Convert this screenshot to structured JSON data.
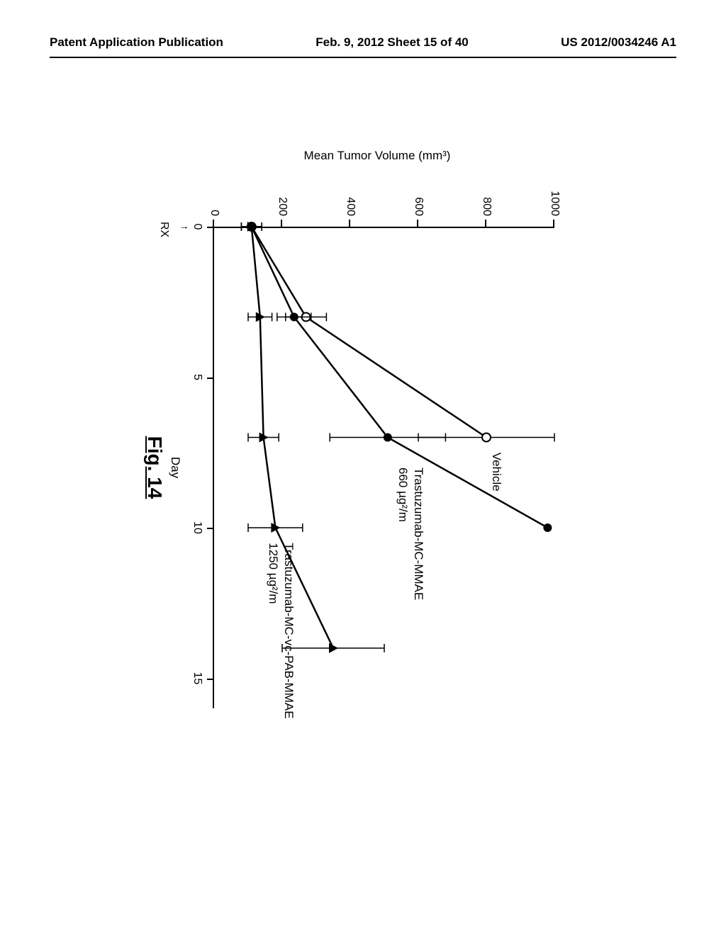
{
  "header": {
    "left": "Patent Application Publication",
    "center": "Feb. 9, 2012  Sheet 15 of 40",
    "right": "US 2012/0034246 A1"
  },
  "chart": {
    "type": "line",
    "title": "",
    "x_label": "Day",
    "y_label": "Mean Tumor Volume (mm³)",
    "xlim": [
      0,
      16
    ],
    "ylim": [
      0,
      1000
    ],
    "y_ticks": [
      0,
      200,
      400,
      600,
      800,
      1000
    ],
    "x_ticks": [
      0,
      5,
      10,
      15
    ],
    "axis_color": "#000000",
    "background_color": "#ffffff",
    "line_width": 2.5,
    "label_fontsize": 17,
    "tick_fontsize": 16,
    "rx_marker": {
      "x": 0,
      "label": "RX",
      "arrow": "↑"
    },
    "series": [
      {
        "name": "Vehicle",
        "label": "Vehicle",
        "marker": "open-circle",
        "color": "#000000",
        "points": [
          {
            "x": 0,
            "y": 110,
            "err": 30
          },
          {
            "x": 3,
            "y": 270,
            "err": 60
          },
          {
            "x": 7,
            "y": 800,
            "err": 200
          }
        ],
        "label_pos": {
          "x": 7.5,
          "y": 850
        }
      },
      {
        "name": "Trastuzumab-MC-MMAE",
        "label": "Trastuzumab-MC-MMAE",
        "sublabel": "660 µg²/m",
        "marker": "filled-circle",
        "color": "#000000",
        "points": [
          {
            "x": 0,
            "y": 110,
            "err": 30
          },
          {
            "x": 3,
            "y": 235,
            "err": 50
          },
          {
            "x": 7,
            "y": 510,
            "err": 170
          },
          {
            "x": 10,
            "y": 980,
            "err": 0
          }
        ],
        "label_pos": {
          "x": 8.0,
          "y": 620
        }
      },
      {
        "name": "Trastuzumab-MC-vc-PAB-MMAE",
        "label": "Trastuzumab-MC-vc-PAB-MMAE",
        "sublabel": "1250 µg²/m",
        "marker": "filled-triangle",
        "color": "#000000",
        "points": [
          {
            "x": 0,
            "y": 110,
            "err": 30
          },
          {
            "x": 3,
            "y": 135,
            "err": 35
          },
          {
            "x": 7,
            "y": 145,
            "err": 45
          },
          {
            "x": 10,
            "y": 180,
            "err": 80
          },
          {
            "x": 14,
            "y": 350,
            "err": 150
          }
        ],
        "label_pos": {
          "x": 10.5,
          "y": 240
        }
      }
    ],
    "figure_label": "Fig. 14"
  }
}
